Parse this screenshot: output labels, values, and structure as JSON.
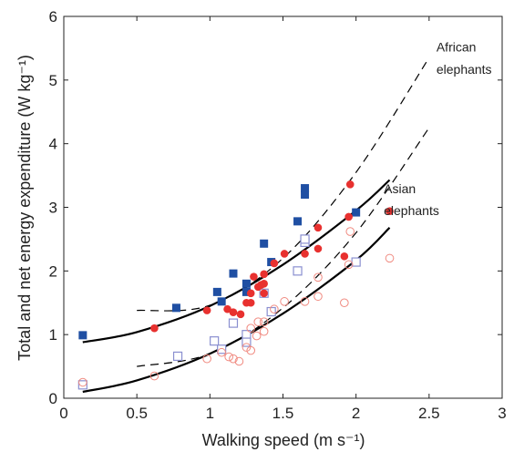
{
  "chart_data": {
    "type": "scatter",
    "xlabel": "Walking speed (m s⁻¹)",
    "ylabel": "Total and net energy expenditure (W kg⁻¹)",
    "xlim": [
      0,
      3
    ],
    "ylim": [
      0,
      6
    ],
    "x_ticks": [
      "0",
      "0.5",
      "1",
      "1.5",
      "2",
      "2.5",
      "3"
    ],
    "y_ticks": [
      "0",
      "1",
      "2",
      "3",
      "4",
      "5",
      "6"
    ],
    "grid": false,
    "annotations": [
      {
        "text": "African",
        "x": 2.55,
        "y": 5.45
      },
      {
        "text": "elephants",
        "x": 2.55,
        "y": 5.1
      },
      {
        "text": "Asian",
        "x": 2.19,
        "y": 3.22
      },
      {
        "text": "elephants",
        "x": 2.19,
        "y": 2.88
      }
    ],
    "colors": {
      "african_total": "#1f4fa3",
      "african_net": "#8a8fd0",
      "asian_total": "#e8312f",
      "asian_net": "#f08a80",
      "fit": "#000000"
    },
    "series": [
      {
        "group": "African elephants total",
        "marker": "filled-square",
        "color": "#1f4fa3",
        "points": [
          [
            0.13,
            0.99
          ],
          [
            0.77,
            1.42
          ],
          [
            1.05,
            1.67
          ],
          [
            1.08,
            1.52
          ],
          [
            1.16,
            1.96
          ],
          [
            1.25,
            1.8
          ],
          [
            1.25,
            1.67
          ],
          [
            1.37,
            2.43
          ],
          [
            1.42,
            2.14
          ],
          [
            1.6,
            2.78
          ],
          [
            1.65,
            3.3
          ],
          [
            1.65,
            3.2
          ],
          [
            2.0,
            2.92
          ]
        ]
      },
      {
        "group": "African elephants net",
        "marker": "open-square",
        "color": "#8a8fd0",
        "points": [
          [
            0.13,
            0.21
          ],
          [
            0.78,
            0.66
          ],
          [
            1.03,
            0.9
          ],
          [
            1.08,
            0.77
          ],
          [
            1.16,
            1.18
          ],
          [
            1.25,
            1.0
          ],
          [
            1.25,
            0.88
          ],
          [
            1.37,
            1.65
          ],
          [
            1.42,
            1.36
          ],
          [
            1.6,
            2.0
          ],
          [
            1.65,
            2.45
          ],
          [
            1.65,
            2.5
          ],
          [
            2.0,
            2.14
          ]
        ]
      },
      {
        "group": "Asian elephants total",
        "marker": "filled-circle",
        "color": "#e8312f",
        "points": [
          [
            0.62,
            1.1
          ],
          [
            0.98,
            1.38
          ],
          [
            1.12,
            1.4
          ],
          [
            1.16,
            1.35
          ],
          [
            1.21,
            1.32
          ],
          [
            1.25,
            1.5
          ],
          [
            1.28,
            1.5
          ],
          [
            1.28,
            1.65
          ],
          [
            1.3,
            1.91
          ],
          [
            1.33,
            1.75
          ],
          [
            1.35,
            1.78
          ],
          [
            1.37,
            1.65
          ],
          [
            1.37,
            1.8
          ],
          [
            1.37,
            1.95
          ],
          [
            1.44,
            2.12
          ],
          [
            1.51,
            2.27
          ],
          [
            1.65,
            2.27
          ],
          [
            1.74,
            2.35
          ],
          [
            1.74,
            2.68
          ],
          [
            1.92,
            2.23
          ],
          [
            1.95,
            2.85
          ],
          [
            1.96,
            3.36
          ],
          [
            2.23,
            2.94
          ]
        ]
      },
      {
        "group": "Asian elephants net",
        "marker": "open-circle",
        "color": "#f08a80",
        "points": [
          [
            0.13,
            0.25
          ],
          [
            0.62,
            0.35
          ],
          [
            0.98,
            0.62
          ],
          [
            1.08,
            0.72
          ],
          [
            1.13,
            0.65
          ],
          [
            1.16,
            0.62
          ],
          [
            1.2,
            0.58
          ],
          [
            1.25,
            0.8
          ],
          [
            1.28,
            0.75
          ],
          [
            1.28,
            1.1
          ],
          [
            1.32,
            0.98
          ],
          [
            1.33,
            1.2
          ],
          [
            1.37,
            1.05
          ],
          [
            1.37,
            1.2
          ],
          [
            1.44,
            1.4
          ],
          [
            1.51,
            1.52
          ],
          [
            1.65,
            1.52
          ],
          [
            1.74,
            1.6
          ],
          [
            1.74,
            1.9
          ],
          [
            1.92,
            1.5
          ],
          [
            1.95,
            2.1
          ],
          [
            1.96,
            2.62
          ],
          [
            2.23,
            2.2
          ]
        ]
      },
      {
        "group": "Total fit",
        "marker": "solid-line",
        "color": "#000000",
        "points": [
          [
            0.13,
            0.88
          ],
          [
            0.5,
            1.04
          ],
          [
            1.0,
            1.45
          ],
          [
            1.5,
            2.1
          ],
          [
            2.0,
            2.95
          ],
          [
            2.23,
            3.43
          ]
        ]
      },
      {
        "group": "Net fit",
        "marker": "solid-line",
        "color": "#000000",
        "points": [
          [
            0.13,
            0.1
          ],
          [
            0.5,
            0.28
          ],
          [
            1.0,
            0.7
          ],
          [
            1.5,
            1.33
          ],
          [
            2.0,
            2.17
          ],
          [
            2.23,
            2.68
          ]
        ]
      },
      {
        "group": "African total fit",
        "marker": "dashed-line",
        "color": "#000000",
        "points": [
          [
            0.5,
            1.38
          ],
          [
            1.0,
            1.46
          ],
          [
            1.5,
            2.2
          ],
          [
            2.0,
            3.55
          ],
          [
            2.5,
            5.35
          ]
        ]
      },
      {
        "group": "African net fit",
        "marker": "dashed-line",
        "color": "#000000",
        "points": [
          [
            0.5,
            0.5
          ],
          [
            1.0,
            0.7
          ],
          [
            1.5,
            1.42
          ],
          [
            2.0,
            2.6
          ],
          [
            2.5,
            4.25
          ]
        ]
      }
    ]
  }
}
